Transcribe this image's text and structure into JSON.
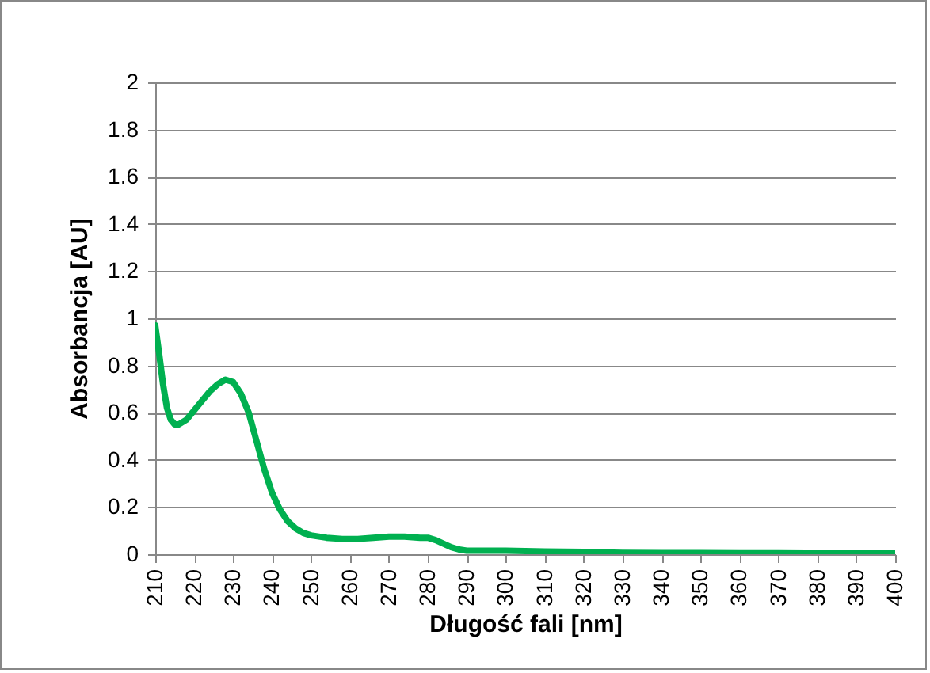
{
  "chart_data": {
    "type": "line",
    "xlabel": "Długość fali [nm]",
    "ylabel": "Absorbancja [AU]",
    "x": [
      210,
      211,
      212,
      213,
      214,
      215,
      216,
      218,
      220,
      222,
      224,
      226,
      228,
      230,
      232,
      234,
      236,
      238,
      240,
      242,
      244,
      246,
      248,
      250,
      254,
      258,
      262,
      266,
      270,
      274,
      278,
      280,
      282,
      284,
      286,
      288,
      290,
      295,
      300,
      310,
      320,
      330,
      340,
      350,
      360,
      370,
      380,
      390,
      400
    ],
    "series": [
      {
        "color": "#00b050",
        "values": [
          0.97,
          0.85,
          0.72,
          0.62,
          0.57,
          0.55,
          0.55,
          0.57,
          0.61,
          0.65,
          0.69,
          0.72,
          0.74,
          0.73,
          0.68,
          0.6,
          0.48,
          0.36,
          0.26,
          0.19,
          0.14,
          0.11,
          0.09,
          0.08,
          0.07,
          0.065,
          0.065,
          0.07,
          0.075,
          0.075,
          0.07,
          0.07,
          0.06,
          0.045,
          0.03,
          0.02,
          0.015,
          0.015,
          0.015,
          0.012,
          0.01,
          0.006,
          0.005,
          0.005,
          0.004,
          0.004,
          0.003,
          0.003,
          0.003
        ]
      }
    ],
    "xlim": [
      210,
      400
    ],
    "xticks": [
      210,
      220,
      230,
      240,
      250,
      260,
      270,
      280,
      290,
      300,
      310,
      320,
      330,
      340,
      350,
      360,
      370,
      380,
      390,
      400
    ],
    "ylim": [
      0,
      2
    ],
    "yticks": [
      0,
      0.2,
      0.4,
      0.6,
      0.8,
      1,
      1.2,
      1.4,
      1.6,
      1.8,
      2
    ],
    "grid": "y",
    "marker": "none",
    "line_style": "solid"
  }
}
